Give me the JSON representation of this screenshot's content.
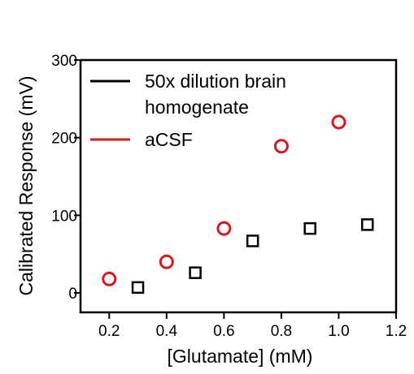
{
  "chart_data": {
    "type": "scatter",
    "title": "",
    "xlabel": "[Glutamate] (mM)",
    "ylabel": "Calibrated Response (mV)",
    "xlim": [
      0.1,
      1.2
    ],
    "ylim": [
      -25,
      300
    ],
    "xticks": [
      "0.2",
      "0.4",
      "0.6",
      "0.8",
      "1.0",
      "1.2"
    ],
    "yticks": [
      "0",
      "100",
      "200",
      "300"
    ],
    "grid": false,
    "legend_position": "top-left",
    "series": [
      {
        "name": "50x dilution brain homogenate",
        "legend_lines": [
          "50x dilution brain",
          "homogenate"
        ],
        "color": "#000000",
        "marker": "square",
        "x": [
          0.3,
          0.5,
          0.7,
          0.9,
          1.1
        ],
        "y": [
          7,
          26,
          67,
          83,
          88
        ]
      },
      {
        "name": "aCSF",
        "legend_lines": [
          "aCSF"
        ],
        "color": "#d7191c",
        "marker": "circle",
        "x": [
          0.2,
          0.4,
          0.6,
          0.8,
          1.0
        ],
        "y": [
          18,
          40,
          83,
          189,
          220
        ]
      }
    ]
  }
}
